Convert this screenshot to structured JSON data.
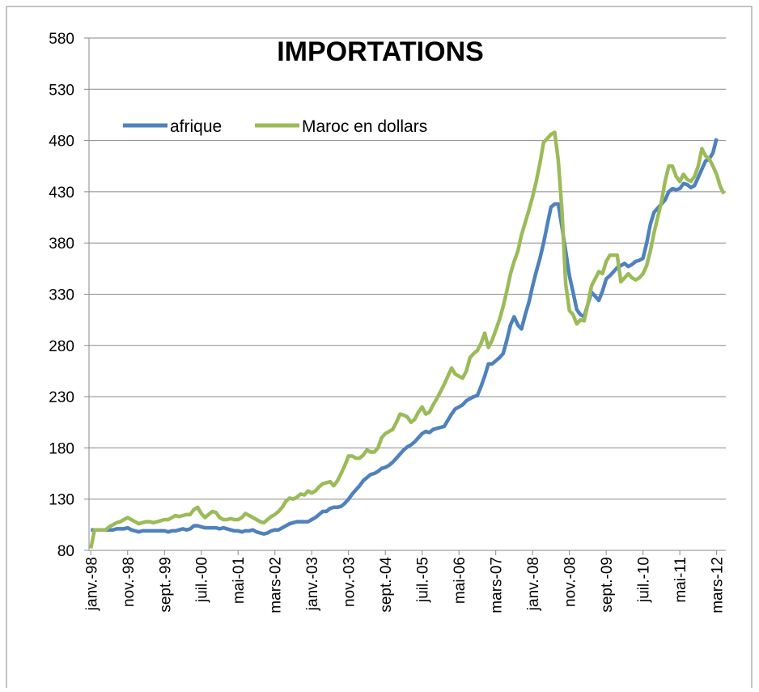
{
  "chart_data": {
    "type": "line",
    "title": "IMPORTATIONS",
    "categories": [
      "janv.-98",
      null,
      null,
      null,
      null,
      null,
      null,
      null,
      null,
      null,
      "nov.-98",
      null,
      null,
      null,
      null,
      null,
      null,
      null,
      null,
      null,
      "sept.-99",
      null,
      null,
      null,
      null,
      null,
      null,
      null,
      null,
      null,
      "juil.-00",
      null,
      null,
      null,
      null,
      null,
      null,
      null,
      null,
      null,
      "mai-01",
      null,
      null,
      null,
      null,
      null,
      null,
      null,
      null,
      null,
      "mars-02",
      null,
      null,
      null,
      null,
      null,
      null,
      null,
      null,
      null,
      "janv.-03",
      null,
      null,
      null,
      null,
      null,
      null,
      null,
      null,
      null,
      "nov.-03",
      null,
      null,
      null,
      null,
      null,
      null,
      null,
      null,
      null,
      "sept.-04",
      null,
      null,
      null,
      null,
      null,
      null,
      null,
      null,
      null,
      "juil.-05",
      null,
      null,
      null,
      null,
      null,
      null,
      null,
      null,
      null,
      "mai-06",
      null,
      null,
      null,
      null,
      null,
      null,
      null,
      null,
      null,
      "mars-07",
      null,
      null,
      null,
      null,
      null,
      null,
      null,
      null,
      null,
      "janv.-08",
      null,
      null,
      null,
      null,
      null,
      null,
      null,
      null,
      null,
      "nov.-08",
      null,
      null,
      null,
      null,
      null,
      null,
      null,
      null,
      null,
      "sept.-09",
      null,
      null,
      null,
      null,
      null,
      null,
      null,
      null,
      null,
      "juil.-10",
      null,
      null,
      null,
      null,
      null,
      null,
      null,
      null,
      null,
      "mai-11",
      null,
      null,
      null,
      null,
      null,
      null,
      null,
      null,
      null,
      "mars-12",
      null,
      null
    ],
    "series": [
      {
        "name": "afrique",
        "color": "#4f81bd",
        "values": [
          100,
          100,
          100,
          100,
          100,
          100,
          100,
          101,
          101,
          101,
          102,
          100,
          99,
          98,
          99,
          99,
          99,
          99,
          99,
          99,
          99,
          98,
          99,
          99,
          100,
          101,
          100,
          101,
          104,
          104,
          103,
          102,
          102,
          102,
          102,
          101,
          102,
          101,
          100,
          99,
          99,
          98,
          99,
          99,
          100,
          98,
          97,
          96,
          97,
          99,
          100,
          100,
          102,
          104,
          106,
          107,
          108,
          108,
          108,
          108,
          110,
          112,
          115,
          118,
          118,
          121,
          122,
          122,
          123,
          126,
          130,
          135,
          139,
          143,
          148,
          151,
          154,
          155,
          157,
          160,
          161,
          163,
          166,
          170,
          174,
          178,
          181,
          183,
          186,
          190,
          194,
          196,
          195,
          198,
          199,
          200,
          201,
          207,
          213,
          218,
          220,
          222,
          226,
          228,
          230,
          231,
          240,
          250,
          262,
          262,
          265,
          268,
          272,
          285,
          300,
          308,
          300,
          296,
          310,
          322,
          338,
          352,
          365,
          380,
          398,
          415,
          418,
          418,
          395,
          372,
          348,
          332,
          315,
          310,
          308,
          320,
          332,
          328,
          324,
          333,
          345,
          348,
          352,
          356,
          358,
          360,
          357,
          359,
          362,
          363,
          365,
          380,
          398,
          410,
          414,
          418,
          422,
          430,
          433,
          432,
          433,
          438,
          437,
          434,
          436,
          444,
          452,
          460,
          462,
          468,
          482,
          null,
          null
        ]
      },
      {
        "name": "Maroc en dollars",
        "color": "#9bbb59",
        "values": [
          82,
          100,
          100,
          100,
          100,
          103,
          105,
          107,
          108,
          110,
          112,
          110,
          108,
          106,
          107,
          108,
          108,
          107,
          108,
          109,
          110,
          110,
          112,
          114,
          113,
          114,
          115,
          115,
          120,
          122,
          116,
          112,
          115,
          118,
          117,
          112,
          110,
          110,
          111,
          110,
          110,
          112,
          116,
          114,
          112,
          110,
          108,
          107,
          110,
          113,
          115,
          118,
          122,
          128,
          131,
          130,
          132,
          135,
          134,
          138,
          136,
          138,
          142,
          145,
          146,
          147,
          143,
          148,
          155,
          163,
          172,
          172,
          170,
          170,
          173,
          178,
          176,
          176,
          180,
          190,
          194,
          196,
          198,
          205,
          213,
          212,
          210,
          205,
          208,
          215,
          220,
          213,
          215,
          222,
          228,
          235,
          242,
          250,
          258,
          252,
          250,
          248,
          255,
          268,
          272,
          275,
          282,
          292,
          278,
          285,
          295,
          305,
          318,
          333,
          350,
          362,
          372,
          388,
          400,
          412,
          425,
          440,
          458,
          478,
          482,
          486,
          488,
          460,
          410,
          340,
          314,
          310,
          301,
          305,
          304,
          320,
          338,
          345,
          352,
          350,
          362,
          368,
          368,
          368,
          342,
          346,
          350,
          346,
          344,
          346,
          350,
          358,
          372,
          390,
          405,
          420,
          440,
          455,
          455,
          445,
          440,
          447,
          442,
          440,
          445,
          455,
          472,
          465,
          462,
          455,
          447,
          435,
          428
        ]
      }
    ],
    "ylim": [
      80,
      580
    ],
    "yticks": [
      80,
      130,
      180,
      230,
      280,
      330,
      380,
      430,
      480,
      530,
      580
    ],
    "grid": true,
    "legend": "top-left"
  }
}
